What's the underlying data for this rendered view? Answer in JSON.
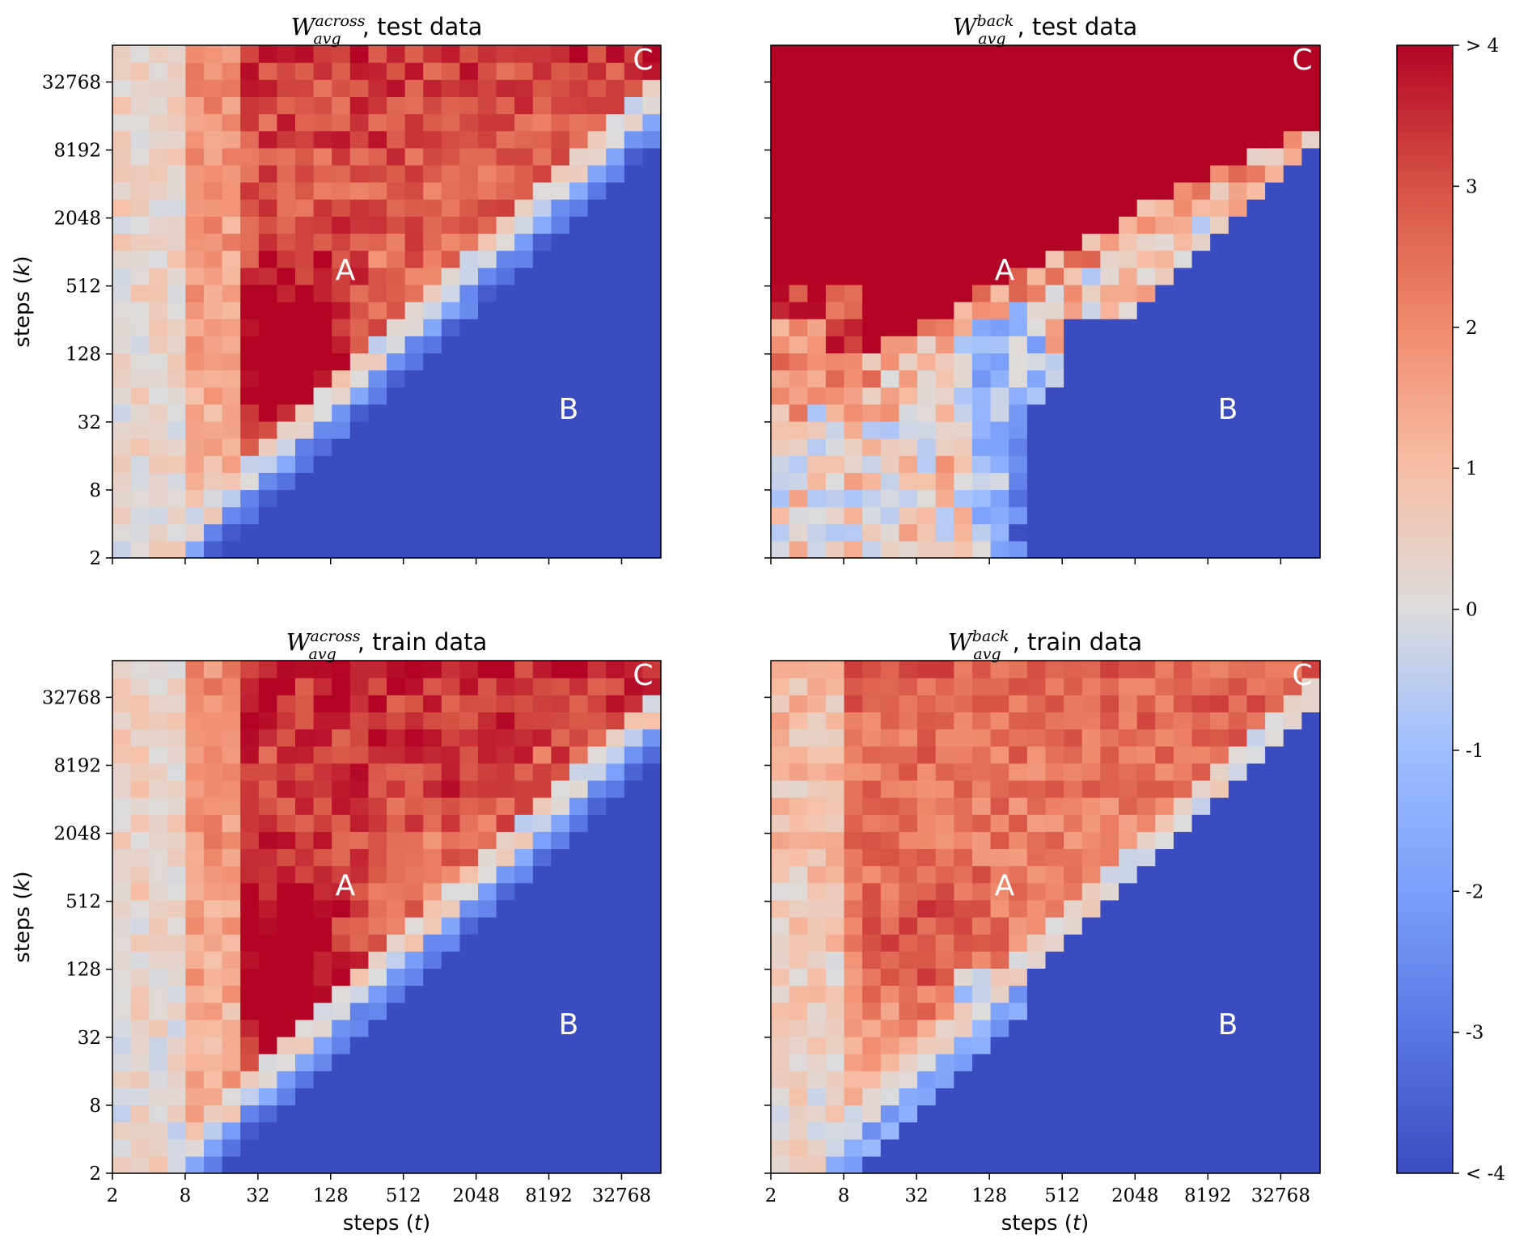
{
  "figure": {
    "x_axis_label": "steps (t)",
    "y_axis_label": "steps (k)",
    "tick_labels": [
      "2",
      "8",
      "32",
      "128",
      "512",
      "2048",
      "8192",
      "32768"
    ]
  },
  "colorbar": {
    "cmap": "coolwarm",
    "low_color": "#3b4cc0",
    "mid_color": "#dddddd",
    "high_color": "#b40426",
    "range": [
      -4,
      4
    ],
    "tick_labels": [
      "< -4",
      "-3",
      "-2",
      "-1",
      "0",
      "1",
      "2",
      "3",
      "> 4"
    ]
  },
  "chart_data": [
    {
      "type": "heatmap",
      "title_symbol": "W",
      "title_superscript": "across",
      "title_subscript": "avg",
      "title_suffix": ", test data",
      "region_labels": [
        "A",
        "B",
        "C"
      ],
      "grid": "30x30 cells, log2 steps t (x) vs log2 steps k (y), 2..~65536",
      "xlim": [
        2,
        65536
      ],
      "ylim": [
        2,
        65536
      ],
      "xscale": "log2",
      "yscale": "log2",
      "summary": {
        "region_A_value": 4,
        "region_B_value": -4,
        "region_C_value": 3.3
      }
    },
    {
      "type": "heatmap",
      "title_symbol": "W",
      "title_superscript": "back",
      "title_subscript": "avg",
      "title_suffix": ", test data",
      "region_labels": [
        "A",
        "B",
        "C"
      ],
      "xlim": [
        2,
        65536
      ],
      "ylim": [
        2,
        65536
      ],
      "xscale": "log2",
      "yscale": "log2",
      "summary": {
        "region_A_value": 4,
        "region_B_value": -4,
        "region_C_value": 4
      }
    },
    {
      "type": "heatmap",
      "title_symbol": "W",
      "title_superscript": "across",
      "title_subscript": "avg",
      "title_suffix": ", train data",
      "region_labels": [
        "A",
        "B",
        "C"
      ],
      "xlim": [
        2,
        65536
      ],
      "ylim": [
        2,
        65536
      ],
      "xscale": "log2",
      "yscale": "log2",
      "summary": {
        "region_A_value": 4,
        "region_B_value": -4,
        "region_C_value": 3.3
      }
    },
    {
      "type": "heatmap",
      "title_symbol": "W",
      "title_superscript": "back",
      "title_subscript": "avg",
      "title_suffix": ", train data",
      "region_labels": [
        "A",
        "B",
        "C"
      ],
      "xlim": [
        2,
        65536
      ],
      "ylim": [
        2,
        65536
      ],
      "xscale": "log2",
      "yscale": "log2",
      "summary": {
        "region_A_value": 2.8,
        "region_B_value": -4,
        "region_C_value": 2.5
      }
    }
  ]
}
